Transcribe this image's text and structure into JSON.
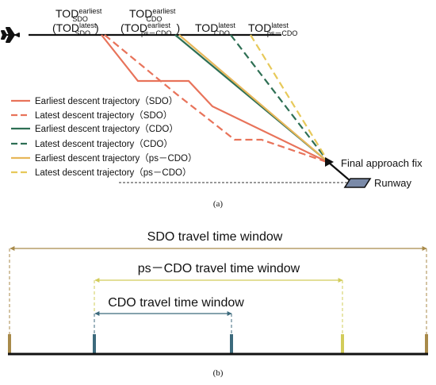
{
  "panel_a": {
    "tod_labels": {
      "earliest_sdo": {
        "main": "TOD",
        "sup": "earliest",
        "sub": "SDO"
      },
      "latest_sdo_paren": {
        "main": "(TOD",
        "sup": "latest",
        "sub": "SDO",
        "close": ")"
      },
      "earliest_cdo": {
        "main": "TOD",
        "sup": "earliest",
        "sub": "CDO"
      },
      "earliest_pscdo_paren": {
        "main": "(TOD",
        "sup": "earliest",
        "sub": "ps－CDO",
        "close": ")"
      },
      "latest_cdo": {
        "main": "TOD",
        "sup": "latest",
        "sub": "CDO"
      },
      "latest_pscdo": {
        "main": "TOD",
        "sup": "latest",
        "sub": "ps－CDO"
      }
    },
    "final_approach_fix_label": "Final approach fix",
    "runway_label": "Runway",
    "caption": "(a)",
    "legend": [
      {
        "label": "Earliest descent trajectory（SDO）",
        "color": "#e8735a",
        "dash": false
      },
      {
        "label": "Latest descent trajectory（SDO）",
        "color": "#e8735a",
        "dash": true
      },
      {
        "label": "Earliest descent trajectory（CDO）",
        "color": "#2e6f54",
        "dash": false
      },
      {
        "label": "Latest descent trajectory（CDO）",
        "color": "#2e6f54",
        "dash": true
      },
      {
        "label": "Earliest descent trajectory（ps－CDO）",
        "color": "#e7b75a",
        "dash": false
      },
      {
        "label": "Latest descent trajectory（ps－CDO）",
        "color": "#e7c95a",
        "dash": true
      }
    ]
  },
  "panel_b": {
    "sdo_window_label": "SDO travel time window",
    "pscdo_window_label": "ps－CDO travel time window",
    "cdo_window_label": "CDO travel time window",
    "caption": "(b)",
    "colors": {
      "sdo": "#a88a4a",
      "pscdo": "#d2cc5a",
      "cdo": "#3c6a7c",
      "timeline": "#111111"
    }
  }
}
